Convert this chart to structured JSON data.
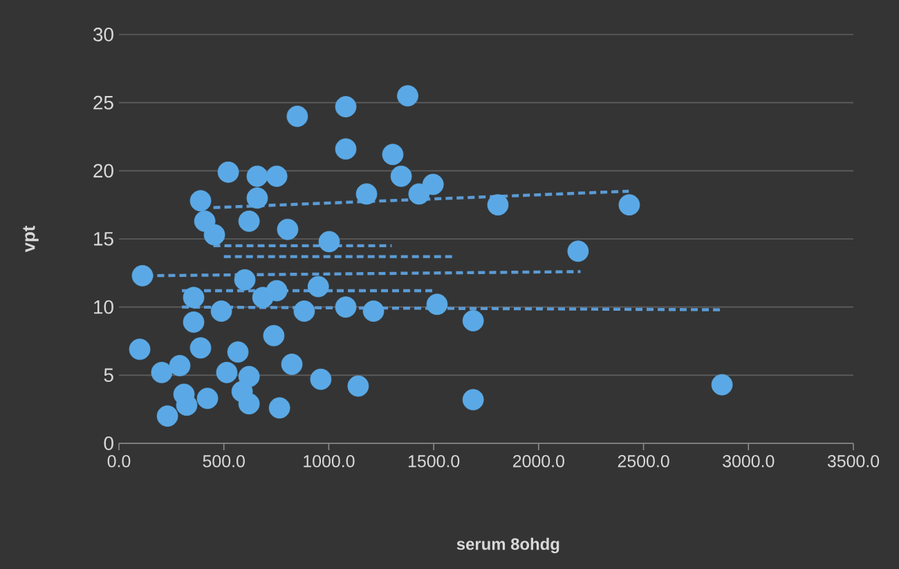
{
  "chart_data": {
    "type": "scatter",
    "xlabel": "serum 8ohdg",
    "ylabel": "vpt",
    "xlim": [
      0,
      3500
    ],
    "ylim": [
      0,
      30
    ],
    "xticks": [
      {
        "value": 0,
        "label": "0.0"
      },
      {
        "value": 500,
        "label": "500.0"
      },
      {
        "value": 1000,
        "label": "1000.0"
      },
      {
        "value": 1500,
        "label": "1500.0"
      },
      {
        "value": 2000,
        "label": "2000.0"
      },
      {
        "value": 2500,
        "label": "2500.0"
      },
      {
        "value": 3000,
        "label": "3000.0"
      },
      {
        "value": 3500,
        "label": "3500.0"
      }
    ],
    "yticks": [
      0,
      5,
      10,
      15,
      20,
      25,
      30
    ],
    "grid": "y",
    "marker": "circle",
    "series": [
      {
        "type": "line",
        "color": "#5b9bd5",
        "line_style": "dashed",
        "marker": "none",
        "x": [
          450,
          2430
        ],
        "values": [
          17.3,
          18.5
        ]
      },
      {
        "type": "line",
        "color": "#5b9bd5",
        "line_style": "dashed",
        "marker": "none",
        "x": [
          450,
          1300
        ],
        "values": [
          14.5,
          14.5
        ]
      },
      {
        "type": "line",
        "color": "#5b9bd5",
        "line_style": "dashed",
        "marker": "none",
        "x": [
          500,
          1600
        ],
        "values": [
          13.7,
          13.7
        ]
      },
      {
        "type": "line",
        "color": "#5b9bd5",
        "line_style": "dashed",
        "marker": "none",
        "x": [
          130,
          2200
        ],
        "values": [
          12.3,
          12.6
        ]
      },
      {
        "type": "line",
        "color": "#5b9bd5",
        "line_style": "dashed",
        "marker": "none",
        "x": [
          300,
          1500
        ],
        "values": [
          11.2,
          11.2
        ]
      },
      {
        "type": "line",
        "color": "#5b9bd5",
        "line_style": "dashed",
        "marker": "none",
        "x": [
          300,
          2880
        ],
        "values": [
          10.0,
          9.8
        ]
      },
      {
        "color": "#5aa9e6",
        "x": [
          112,
          99,
          204,
          290,
          231,
          310,
          389,
          422,
          323,
          514,
          567,
          620,
          587,
          620,
          765,
          824,
          738,
          962,
          521,
          659,
          752,
          850,
          1081,
          1081,
          1376,
          1305,
          1345,
          1430,
          1497,
          1180,
          659,
          389,
          409,
          455,
          620,
          804,
          1002,
          1806,
          2432,
          2188,
          1688,
          2874,
          1140,
          1688,
          1516,
          752,
          356,
          488,
          686,
          883,
          1081,
          1213,
          356,
          600,
          950
        ],
        "values": [
          12.3,
          6.9,
          5.2,
          5.7,
          2.0,
          3.6,
          7.0,
          3.3,
          2.8,
          5.2,
          6.7,
          4.9,
          3.8,
          2.9,
          2.6,
          5.8,
          7.9,
          4.7,
          19.9,
          19.6,
          19.6,
          24.0,
          24.7,
          21.6,
          25.5,
          21.2,
          19.6,
          18.3,
          19.0,
          18.3,
          18.0,
          17.8,
          16.3,
          15.3,
          16.3,
          15.7,
          14.8,
          17.5,
          17.5,
          14.1,
          9.0,
          4.3,
          4.2,
          3.2,
          10.2,
          11.2,
          8.9,
          9.7,
          10.7,
          9.7,
          10.0,
          9.7,
          10.7,
          12.0,
          11.5
        ]
      }
    ]
  }
}
